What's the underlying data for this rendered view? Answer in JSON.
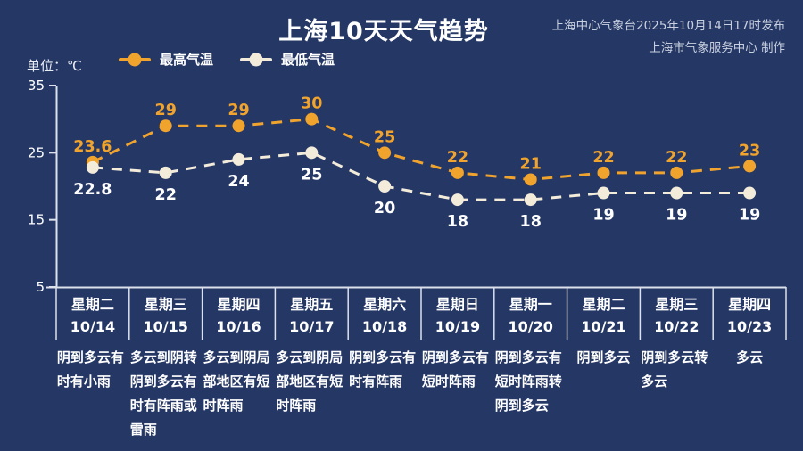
{
  "source": {
    "line1": "上海中心气象台2025年10月14日17时发布",
    "line2": "上海市气象服务中心 制作"
  },
  "unit_label": "单位：℃",
  "colors": {
    "background": "#253765",
    "high": "#f0a32d",
    "high_label": "#f0a32d",
    "low": "#f3ecda",
    "low_label": "#ffffff",
    "axis": "#dde1ec",
    "tick_text": "#ffffff"
  },
  "chart_data": {
    "type": "line",
    "title": "上海10天天气趋势",
    "ylabel": "单位：℃",
    "ylim": [
      5,
      35
    ],
    "yticks": [
      35,
      25,
      15,
      5
    ],
    "grid": false,
    "legend_position": "top",
    "line_style": "dashed",
    "categories": [
      {
        "weekday": "星期二",
        "date": "10/14",
        "weather": "阴到多云有时有小雨"
      },
      {
        "weekday": "星期三",
        "date": "10/15",
        "weather": "多云到阴转阴到多云有时有阵雨或雷雨"
      },
      {
        "weekday": "星期四",
        "date": "10/16",
        "weather": "多云到阴局部地区有短时阵雨"
      },
      {
        "weekday": "星期五",
        "date": "10/17",
        "weather": "多云到阴局部地区有短时阵雨"
      },
      {
        "weekday": "星期六",
        "date": "10/18",
        "weather": "阴到多云有时有阵雨"
      },
      {
        "weekday": "星期日",
        "date": "10/19",
        "weather": "阴到多云有短时阵雨"
      },
      {
        "weekday": "星期一",
        "date": "10/20",
        "weather": "阴到多云有短时阵雨转阴到多云"
      },
      {
        "weekday": "星期二",
        "date": "10/21",
        "weather": "阴到多云"
      },
      {
        "weekday": "星期三",
        "date": "10/22",
        "weather": "阴到多云转多云"
      },
      {
        "weekday": "星期四",
        "date": "10/23",
        "weather": "多云"
      }
    ],
    "series": [
      {
        "name": "最高气温",
        "values": [
          23.6,
          29,
          29,
          30,
          25,
          22,
          21,
          22,
          22,
          23
        ]
      },
      {
        "name": "最低气温",
        "values": [
          22.8,
          22,
          24,
          25,
          20,
          18,
          18,
          19,
          19,
          19
        ]
      }
    ]
  }
}
